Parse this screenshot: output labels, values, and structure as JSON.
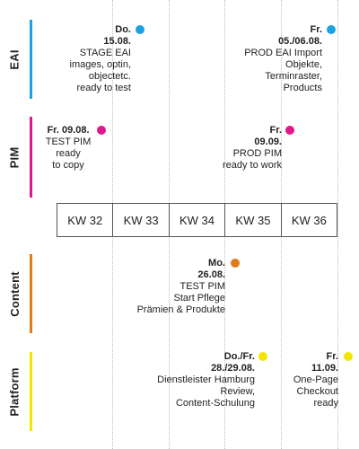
{
  "colors": {
    "eai": "#1aa3e0",
    "pim": "#e0168c",
    "content": "#e07a1a",
    "platform": "#f2e600"
  },
  "lanes": {
    "eai": "EAI",
    "pim": "PIM",
    "content": "Content",
    "platform": "Platform"
  },
  "weeks": [
    "KW 32",
    "KW 33",
    "KW 34",
    "KW 35",
    "KW 36"
  ],
  "events": {
    "eai_1": {
      "date_line1": "Do.",
      "date_line2": "15.08.",
      "text": [
        "STAGE EAI",
        "images, optin,",
        "objectetc.",
        "ready to test"
      ]
    },
    "eai_2": {
      "date_line1": "Fr.",
      "date_line2": "05./06.08.",
      "text": [
        "PROD EAI Import",
        "Objekte,",
        "Terminraster,",
        "Products"
      ]
    },
    "pim_1": {
      "date_line1": "Fr. 09.08.",
      "text": [
        "TEST PIM",
        "ready",
        "to copy"
      ]
    },
    "pim_2": {
      "date_line1": "Fr.",
      "date_line2": "09.09.",
      "text": [
        "PROD PIM",
        "ready to work"
      ]
    },
    "content_1": {
      "date_line1": "Mo.",
      "date_line2": "26.08.",
      "text": [
        "TEST PIM",
        "Start Pflege",
        "Prämien & Produkte"
      ]
    },
    "platform_1": {
      "date_line1": "Do./Fr.",
      "date_line2": "28./29.08.",
      "text": [
        "Dienstleister Hamburg",
        "Review,",
        "Content-Schulung"
      ]
    },
    "platform_2": {
      "date_line1": "Fr.",
      "date_line2": "11.09.",
      "text": [
        "One-Page",
        "Checkout",
        "ready"
      ]
    }
  }
}
